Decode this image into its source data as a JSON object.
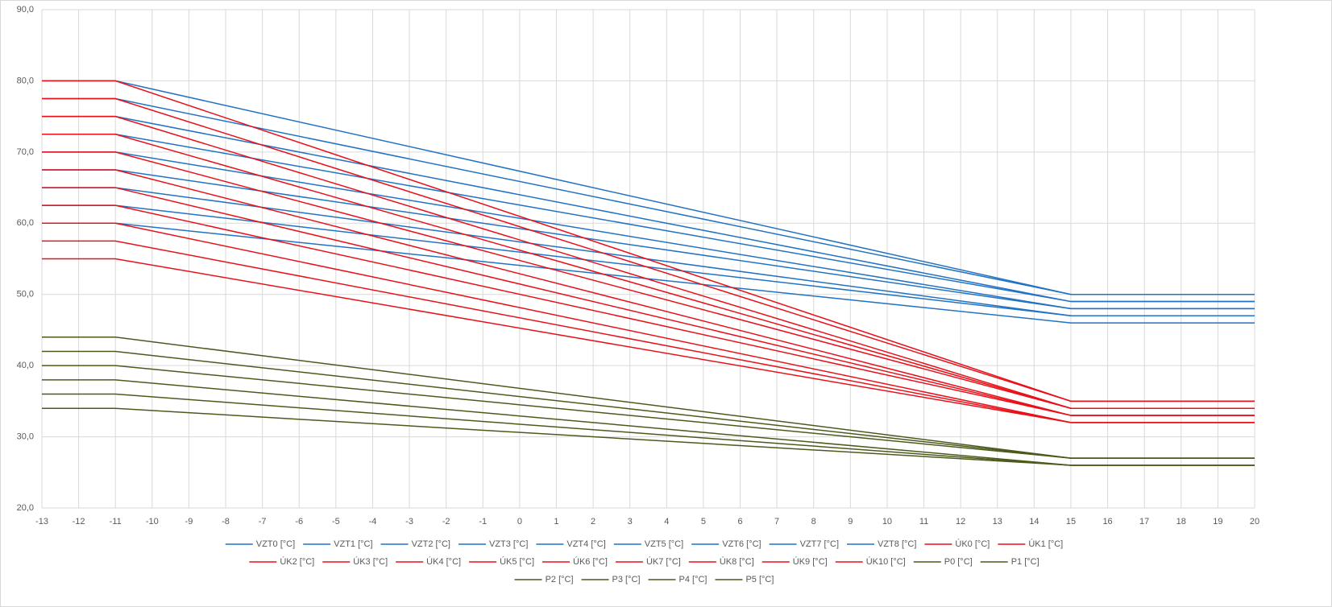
{
  "chart_data": {
    "type": "line",
    "x": [
      -13,
      -11,
      15,
      20
    ],
    "xlim": [
      -13,
      20
    ],
    "xticks": [
      -13,
      -12,
      -11,
      -10,
      -9,
      -8,
      -7,
      -6,
      -5,
      -4,
      -3,
      -2,
      -1,
      0,
      1,
      2,
      3,
      4,
      5,
      6,
      7,
      8,
      9,
      10,
      11,
      12,
      13,
      14,
      15,
      16,
      17,
      18,
      19,
      20
    ],
    "ylim": [
      20,
      90
    ],
    "yticks": [
      {
        "value": 20,
        "label": "20,0"
      },
      {
        "value": 30,
        "label": "30,0"
      },
      {
        "value": 40,
        "label": "40,0"
      },
      {
        "value": 50,
        "label": "50,0"
      },
      {
        "value": 60,
        "label": "60,0"
      },
      {
        "value": 70,
        "label": "70,0"
      },
      {
        "value": 80,
        "label": "80,0"
      },
      {
        "value": 90,
        "label": "90,0"
      }
    ],
    "grid": true,
    "legend": "bottom",
    "series": [
      {
        "name": "VZT0 [°C]",
        "color": "#2272c3",
        "values": [
          80,
          80,
          50,
          50
        ]
      },
      {
        "name": "VZT1 [°C]",
        "color": "#2272c3",
        "values": [
          77.5,
          77.5,
          50,
          50
        ]
      },
      {
        "name": "VZT2 [°C]",
        "color": "#2272c3",
        "values": [
          75,
          75,
          49,
          49
        ]
      },
      {
        "name": "VZT3 [°C]",
        "color": "#2272c3",
        "values": [
          72.5,
          72.5,
          49,
          49
        ]
      },
      {
        "name": "VZT4 [°C]",
        "color": "#2272c3",
        "values": [
          70,
          70,
          48,
          48
        ]
      },
      {
        "name": "VZT5 [°C]",
        "color": "#2272c3",
        "values": [
          67.5,
          67.5,
          48,
          48
        ]
      },
      {
        "name": "VZT6 [°C]",
        "color": "#2272c3",
        "values": [
          65,
          65,
          47,
          47
        ]
      },
      {
        "name": "VZT7 [°C]",
        "color": "#2272c3",
        "values": [
          62.5,
          62.5,
          47,
          47
        ]
      },
      {
        "name": "VZT8 [°C]",
        "color": "#2272c3",
        "values": [
          60,
          60,
          46,
          46
        ]
      },
      {
        "name": "ÚK0 [°C]",
        "color": "#e8111a",
        "values": [
          80,
          80,
          35,
          35
        ]
      },
      {
        "name": "ÚK1 [°C]",
        "color": "#e8111a",
        "values": [
          77.5,
          77.5,
          35,
          35
        ]
      },
      {
        "name": "ÚK2 [°C]",
        "color": "#e8111a",
        "values": [
          75,
          75,
          34,
          34
        ]
      },
      {
        "name": "ÚK3 [°C]",
        "color": "#e8111a",
        "values": [
          72.5,
          72.5,
          34,
          34
        ]
      },
      {
        "name": "ÚK4 [°C]",
        "color": "#e8111a",
        "values": [
          70,
          70,
          34,
          34
        ]
      },
      {
        "name": "ÚK5 [°C]",
        "color": "#e8111a",
        "values": [
          67.5,
          67.5,
          33,
          33
        ]
      },
      {
        "name": "ÚK6 [°C]",
        "color": "#e8111a",
        "values": [
          65,
          65,
          33,
          33
        ]
      },
      {
        "name": "ÚK7 [°C]",
        "color": "#e8111a",
        "values": [
          62.5,
          62.5,
          33,
          33
        ]
      },
      {
        "name": "ÚK8 [°C]",
        "color": "#e8111a",
        "values": [
          60,
          60,
          32,
          32
        ]
      },
      {
        "name": "ÚK9 [°C]",
        "color": "#e8111a",
        "values": [
          57.5,
          57.5,
          32,
          32
        ]
      },
      {
        "name": "ÚK10 [°C]",
        "color": "#e8111a",
        "values": [
          55,
          55,
          32,
          32
        ]
      },
      {
        "name": "P0 [°C]",
        "color": "#4b5a1c",
        "values": [
          34,
          34,
          26,
          26
        ]
      },
      {
        "name": "P1 [°C]",
        "color": "#4b5a1c",
        "values": [
          36,
          36,
          26,
          26
        ]
      },
      {
        "name": "P2 [°C]",
        "color": "#4b5a1c",
        "values": [
          38,
          38,
          26,
          26
        ]
      },
      {
        "name": "P3 [°C]",
        "color": "#4b5a1c",
        "values": [
          40,
          40,
          27,
          27
        ]
      },
      {
        "name": "P4 [°C]",
        "color": "#4b5a1c",
        "values": [
          42,
          42,
          27,
          27
        ]
      },
      {
        "name": "P5 [°C]",
        "color": "#4b5a1c",
        "values": [
          44,
          44,
          27,
          27
        ]
      }
    ]
  }
}
